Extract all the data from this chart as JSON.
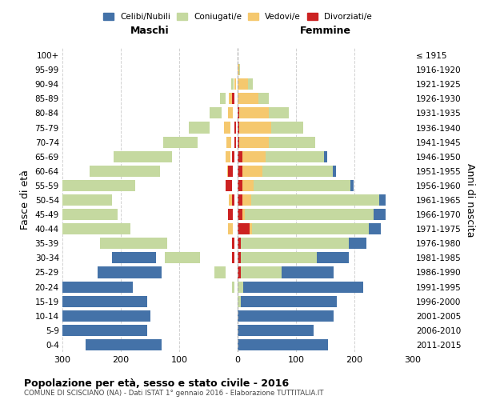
{
  "age_groups": [
    "0-4",
    "5-9",
    "10-14",
    "15-19",
    "20-24",
    "25-29",
    "30-34",
    "35-39",
    "40-44",
    "45-49",
    "50-54",
    "55-59",
    "60-64",
    "65-69",
    "70-74",
    "75-79",
    "80-84",
    "85-89",
    "90-94",
    "95-99",
    "100+"
  ],
  "birth_years": [
    "2011-2015",
    "2006-2010",
    "2001-2005",
    "1996-2000",
    "1991-1995",
    "1986-1990",
    "1981-1985",
    "1976-1980",
    "1971-1975",
    "1966-1970",
    "1961-1965",
    "1956-1960",
    "1951-1955",
    "1946-1950",
    "1941-1945",
    "1936-1940",
    "1931-1935",
    "1926-1930",
    "1921-1925",
    "1916-1920",
    "≤ 1915"
  ],
  "males": {
    "celibi": [
      130,
      155,
      150,
      155,
      175,
      110,
      75,
      55,
      30,
      20,
      18,
      8,
      5,
      5,
      3,
      0,
      0,
      0,
      0,
      0,
      0
    ],
    "coniugati": [
      0,
      0,
      0,
      0,
      5,
      20,
      60,
      115,
      175,
      195,
      205,
      160,
      120,
      100,
      58,
      35,
      20,
      10,
      4,
      0,
      0
    ],
    "vedovi": [
      0,
      0,
      0,
      0,
      0,
      0,
      0,
      0,
      8,
      3,
      5,
      5,
      5,
      8,
      8,
      10,
      8,
      5,
      3,
      0,
      0
    ],
    "divorziati": [
      0,
      0,
      0,
      0,
      0,
      0,
      5,
      5,
      0,
      8,
      5,
      10,
      8,
      5,
      3,
      3,
      0,
      5,
      0,
      0,
      0
    ]
  },
  "females": {
    "nubili": [
      155,
      130,
      165,
      165,
      205,
      90,
      55,
      30,
      20,
      20,
      10,
      5,
      5,
      5,
      0,
      0,
      0,
      0,
      0,
      0,
      0
    ],
    "coniugate": [
      0,
      0,
      0,
      5,
      10,
      70,
      130,
      185,
      200,
      220,
      220,
      165,
      120,
      100,
      80,
      55,
      35,
      18,
      8,
      1,
      0
    ],
    "vedove": [
      0,
      0,
      0,
      0,
      0,
      0,
      0,
      0,
      5,
      5,
      15,
      20,
      35,
      40,
      50,
      55,
      50,
      35,
      18,
      3,
      0
    ],
    "divorziate": [
      0,
      0,
      0,
      0,
      0,
      5,
      5,
      5,
      20,
      8,
      8,
      8,
      8,
      8,
      3,
      3,
      3,
      0,
      0,
      0,
      0
    ]
  },
  "colors": {
    "celibi_nubili": "#4472a8",
    "coniugati": "#c5d9a0",
    "vedovi": "#f5c86e",
    "divorziati": "#cc2222"
  },
  "xlim": 300,
  "title": "Popolazione per età, sesso e stato civile - 2016",
  "subtitle": "COMUNE DI SCISCIANO (NA) - Dati ISTAT 1° gennaio 2016 - Elaborazione TUTTITALIA.IT",
  "ylabel_left": "Fasce di età",
  "ylabel_right": "Anni di nascita",
  "xlabel_maschi": "Maschi",
  "xlabel_femmine": "Femmine",
  "legend_labels": [
    "Celibi/Nubili",
    "Coniugati/e",
    "Vedovi/e",
    "Divorziati/e"
  ],
  "background_color": "#ffffff",
  "grid_color": "#cccccc"
}
